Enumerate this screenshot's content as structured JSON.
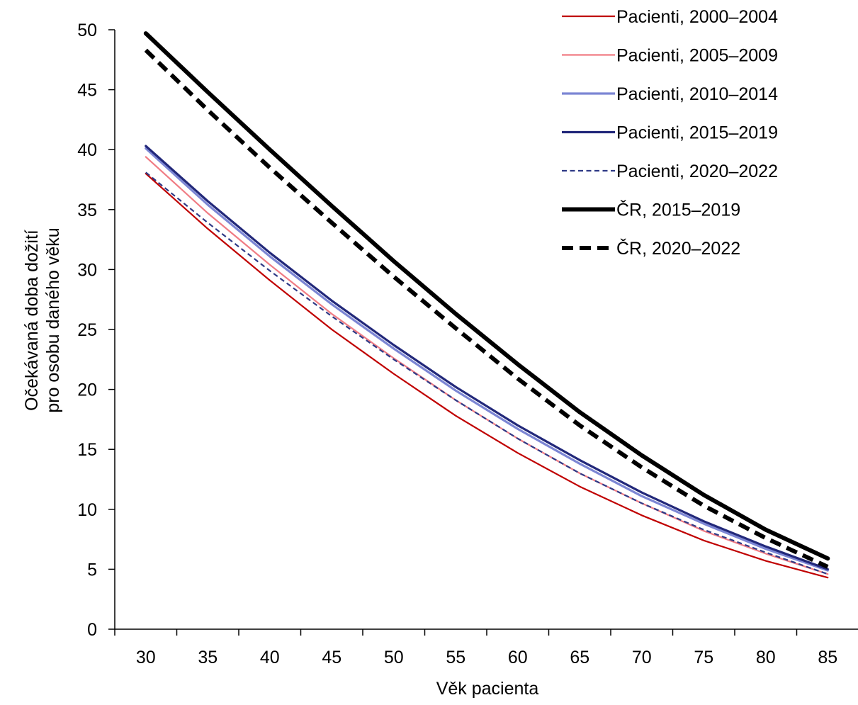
{
  "chart_data": {
    "type": "line",
    "title": "",
    "xlabel": "Věk pacienta",
    "ylabel_lines": [
      "Očekávaná doba dožití",
      "pro osobu daného věku"
    ],
    "x": [
      30,
      35,
      40,
      45,
      50,
      55,
      60,
      65,
      70,
      75,
      80,
      85
    ],
    "xlim": [
      27.5,
      87.5
    ],
    "ylim": [
      0,
      50
    ],
    "yticks": [
      0,
      5,
      10,
      15,
      20,
      25,
      30,
      35,
      40,
      45,
      50
    ],
    "grid": false,
    "legend_position": "top-right",
    "series": [
      {
        "name": "Pacienti, 2000–2004",
        "color": "#C00000",
        "dash": "solid",
        "weight": "thin",
        "values": [
          38.0,
          33.4,
          29.1,
          25.0,
          21.3,
          17.8,
          14.7,
          11.9,
          9.5,
          7.4,
          5.7,
          4.3
        ]
      },
      {
        "name": "Pacienti, 2005–2009",
        "color": "#F07C84",
        "dash": "solid",
        "weight": "thin",
        "values": [
          39.4,
          34.7,
          30.4,
          26.3,
          22.6,
          19.1,
          15.9,
          13.0,
          10.5,
          8.2,
          6.3,
          4.6
        ]
      },
      {
        "name": "Pacienti, 2010–2014",
        "color": "#7C86D4",
        "dash": "solid",
        "weight": "medium",
        "values": [
          40.1,
          35.4,
          31.1,
          27.1,
          23.4,
          19.9,
          16.7,
          13.8,
          11.1,
          8.8,
          6.7,
          4.9
        ]
      },
      {
        "name": "Pacienti, 2015–2019",
        "color": "#22287A",
        "dash": "solid",
        "weight": "medium",
        "values": [
          40.3,
          35.7,
          31.4,
          27.4,
          23.7,
          20.2,
          17.0,
          14.1,
          11.4,
          9.0,
          6.9,
          5.0
        ]
      },
      {
        "name": "Pacienti, 2020–2022",
        "color": "#2F3A86",
        "dash": "dashed",
        "weight": "thin",
        "values": [
          38.1,
          33.9,
          29.9,
          26.1,
          22.5,
          19.1,
          15.9,
          13.0,
          10.5,
          8.3,
          6.4,
          4.6
        ]
      },
      {
        "name": "ČR, 2015–2019",
        "color": "#000000",
        "dash": "solid",
        "weight": "heavy",
        "values": [
          49.7,
          44.8,
          40.0,
          35.3,
          30.7,
          26.3,
          22.1,
          18.1,
          14.5,
          11.2,
          8.3,
          5.9
        ]
      },
      {
        "name": "ČR, 2020–2022",
        "color": "#000000",
        "dash": "dashed",
        "weight": "heavy",
        "values": [
          48.3,
          43.3,
          38.5,
          33.9,
          29.4,
          25.1,
          20.9,
          17.0,
          13.5,
          10.3,
          7.6,
          5.2
        ]
      }
    ]
  }
}
